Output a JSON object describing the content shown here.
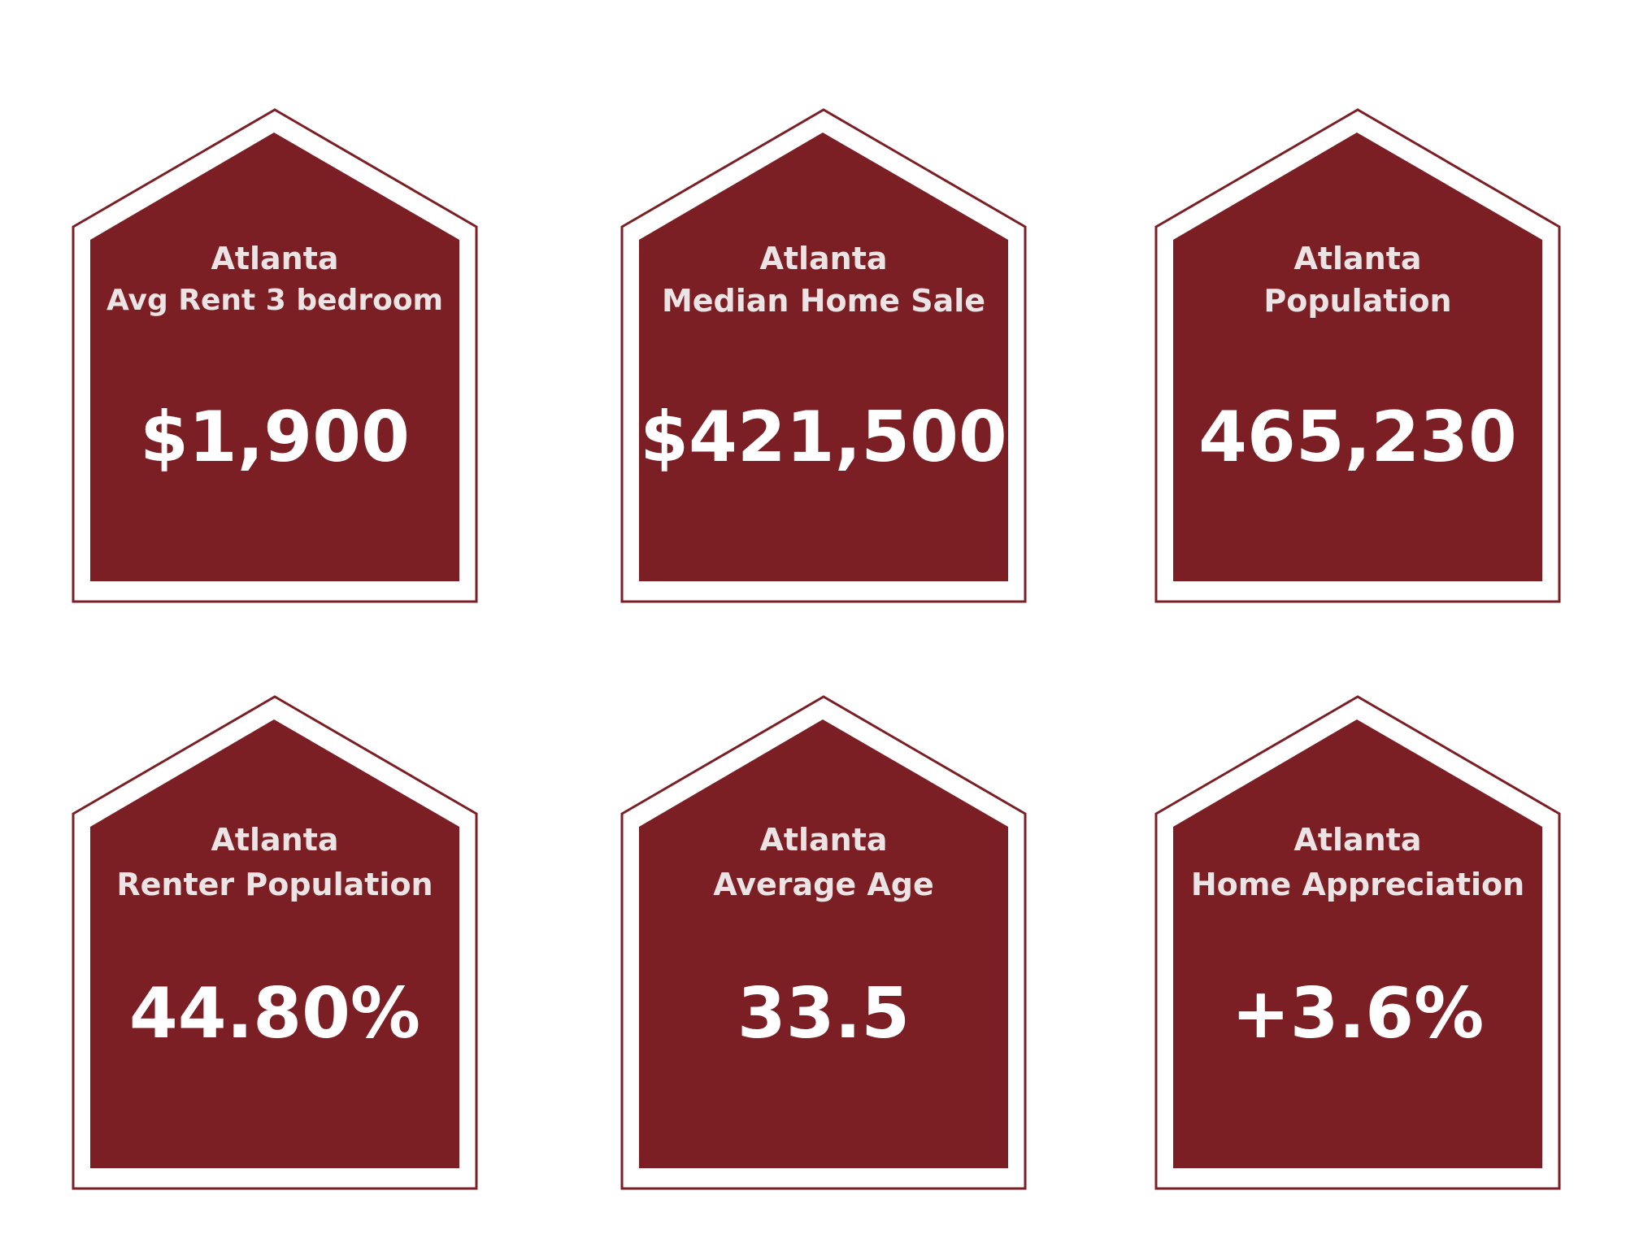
{
  "colors": {
    "maroon": "#7b1f24",
    "outline": "#7b1f24",
    "label_text": "#ece3e4",
    "value_text": "#ffffff",
    "background": "#ffffff"
  },
  "cards": [
    {
      "city": "Atlanta",
      "metric": "Avg Rent 3 bedroom",
      "value": "$1,900"
    },
    {
      "city": "Atlanta",
      "metric": "Median Home Sale",
      "value": "$421,500"
    },
    {
      "city": "Atlanta",
      "metric": "Population",
      "value": "465,230"
    },
    {
      "city": "Atlanta",
      "metric": "Renter Population",
      "value": "44.80%"
    },
    {
      "city": "Atlanta",
      "metric": "Average Age",
      "value": "33.5"
    },
    {
      "city": "Atlanta",
      "metric": "Home Appreciation",
      "value": "+3.6%"
    }
  ]
}
